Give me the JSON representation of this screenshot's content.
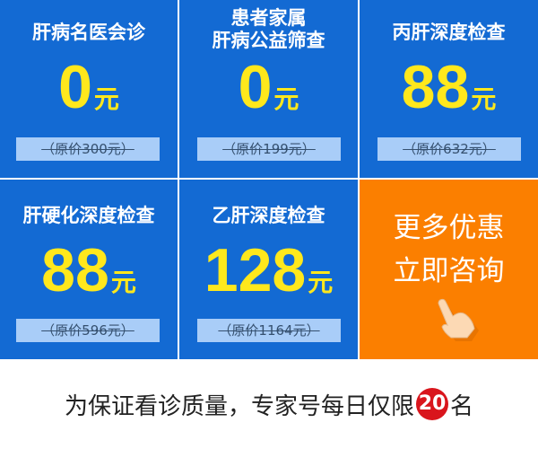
{
  "cards": [
    {
      "title": "肝病名医会诊",
      "price": "0",
      "unit": "元",
      "original": "（原价300元）"
    },
    {
      "title": "患者家属\n肝病公益筛查",
      "price": "0",
      "unit": "元",
      "original": "（原价199元）"
    },
    {
      "title": "丙肝深度检查",
      "price": "88",
      "unit": "元",
      "original": "（原价632元）"
    },
    {
      "title": "肝硬化深度检查",
      "price": "88",
      "unit": "元",
      "original": "（原价596元）"
    },
    {
      "title": "乙肝深度检查",
      "price": "128",
      "unit": "元",
      "original": "（原价1164元）"
    }
  ],
  "promo": {
    "line1": "更多优惠",
    "line2": "立即咨询",
    "icon": "pointing-hand-icon"
  },
  "footer": {
    "text_before": "为保证看诊质量，专家号每日仅限",
    "limit": "20",
    "text_after": "名"
  },
  "colors": {
    "blue": "#136ad3",
    "orange": "#fb7f00",
    "yellow": "#ffe81c",
    "red": "#d9151c"
  }
}
